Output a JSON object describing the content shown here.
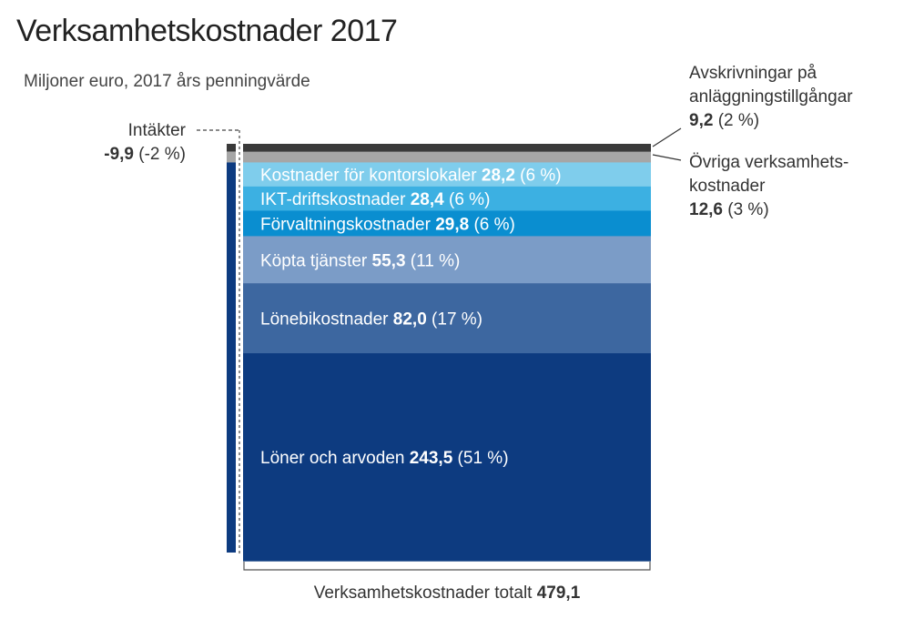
{
  "chart_data": {
    "type": "bar",
    "title": "Verksamhetskostnader 2017",
    "subtitle": "Miljoner euro, 2017 års penningvärde",
    "segments": [
      {
        "name": "Avskrivningar på anläggningstillgångar",
        "value": 9.2,
        "value_label": "9,2",
        "share": "(2 %)",
        "color": "#3a3a3a"
      },
      {
        "name": "Övriga verksamhetskostnader",
        "value": 12.6,
        "value_label": "12,6",
        "share": "(3 %)",
        "color": "#a6a6a6"
      },
      {
        "name": "Kostnader för kontorslokaler",
        "value": 28.2,
        "value_label": "28,2",
        "share": "(6 %)",
        "color": "#7fcdec"
      },
      {
        "name": "IKT-driftskostnader",
        "value": 28.4,
        "value_label": "28,4",
        "share": "(6 %)",
        "color": "#3cb0e2"
      },
      {
        "name": "Förvaltningskostnader",
        "value": 29.8,
        "value_label": "29,8",
        "share": "(6 %)",
        "color": "#0a8ed0"
      },
      {
        "name": "Köpta tjänster",
        "value": 55.3,
        "value_label": "55,3",
        "share": "(11 %)",
        "color": "#7b9cc7"
      },
      {
        "name": "Lönebikostnader",
        "value": 82.0,
        "value_label": "82,0",
        "share": "(17 %)",
        "color": "#3d67a0"
      },
      {
        "name": "Löner och arvoden",
        "value": 243.5,
        "value_label": "243,5",
        "share": "(51 %)",
        "color": "#0d3b80"
      }
    ],
    "income": {
      "name": "Intäkter",
      "value": -9.9,
      "value_label": "-9,9",
      "share": "(-2 %)",
      "colors": [
        "#3a3a3a",
        "#a6a6a6",
        "#0d3b80"
      ]
    },
    "total": {
      "label": "Verksamhetskostnader totalt",
      "value": 479.1,
      "value_label": "479,1"
    },
    "external_labels": {
      "depreciation": {
        "lines": [
          "Avskrivningar på",
          "anläggningstillgångar"
        ],
        "value": "9,2",
        "share": "(2 %)"
      },
      "other": {
        "lines": [
          "Övriga verksamhets-",
          "kostnader"
        ],
        "value": "12,6",
        "share": "(3 %)"
      }
    }
  }
}
